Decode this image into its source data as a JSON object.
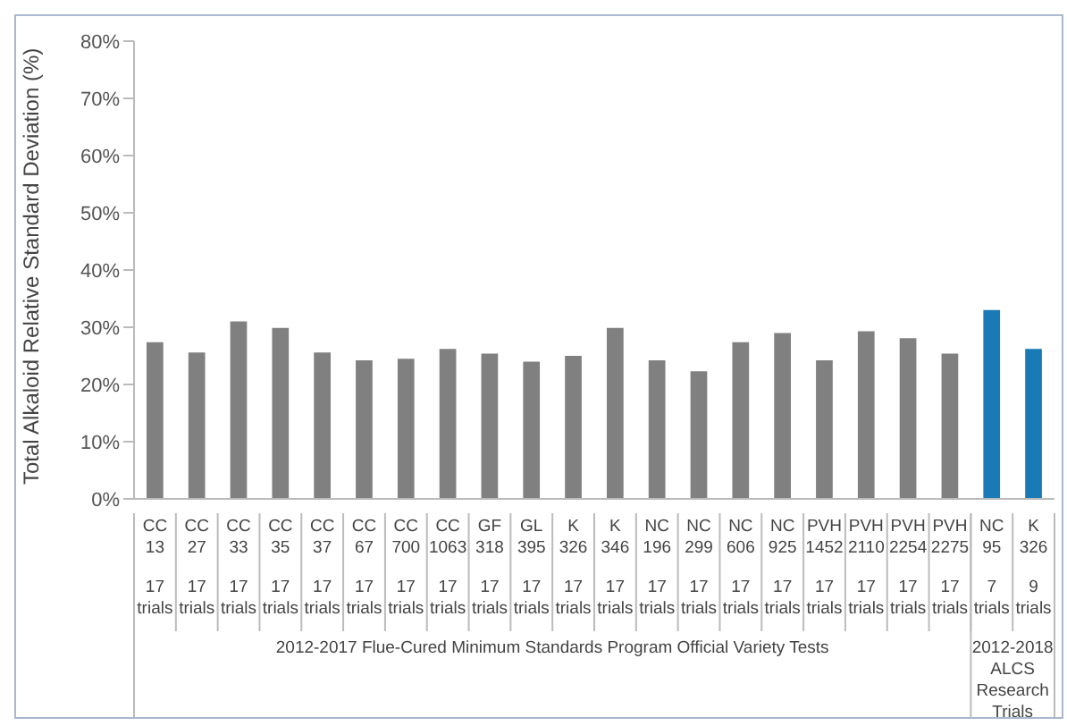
{
  "chart_data": {
    "type": "bar",
    "ylabel": "Total Alkaloid Relative Standard Deviation (%)",
    "categories": [
      "CC 13\n17 trials",
      "CC 27\n17 trials",
      "CC 33\n17 trials",
      "CC 35\n17 trials",
      "CC 37\n17 trials",
      "CC 67\n17 trials",
      "CC 700\n17 trials",
      "CC 1063\n17 trials",
      "GF 318\n17 trials",
      "GL 395\n17 trials",
      "K 326\n17 trials",
      "K 346\n17 trials",
      "NC 196\n17 trials",
      "NC 299\n17 trials",
      "NC 606\n17 trials",
      "NC 925\n17 trials",
      "PVH 1452\n17 trials",
      "PVH 2110\n17 trials",
      "PVH 2254\n17 trials",
      "PVH 2275\n17 trials",
      "NC 95\n7 trials",
      "K 326\n9 trials"
    ],
    "values": [
      27.4,
      25.6,
      31.0,
      29.9,
      25.6,
      24.2,
      24.5,
      26.2,
      25.4,
      24.0,
      25.0,
      29.9,
      24.2,
      22.3,
      27.4,
      29.0,
      24.2,
      29.3,
      28.1,
      25.4,
      33.0,
      26.2
    ],
    "colors": [
      "#808080",
      "#808080",
      "#808080",
      "#808080",
      "#808080",
      "#808080",
      "#808080",
      "#808080",
      "#808080",
      "#808080",
      "#808080",
      "#808080",
      "#808080",
      "#808080",
      "#808080",
      "#808080",
      "#808080",
      "#808080",
      "#808080",
      "#808080",
      "#1a7ab5",
      "#1a7ab5"
    ],
    "ylim": [
      0,
      80
    ],
    "yticks": [
      {
        "value": 0,
        "label": "0%"
      },
      {
        "value": 10,
        "label": "10%"
      },
      {
        "value": 20,
        "label": "20%"
      },
      {
        "value": 30,
        "label": "30%"
      },
      {
        "value": 40,
        "label": "40%"
      },
      {
        "value": 50,
        "label": "50%"
      },
      {
        "value": 60,
        "label": "60%"
      },
      {
        "value": 70,
        "label": "70%"
      },
      {
        "value": 80,
        "label": "80%"
      }
    ],
    "grid": false,
    "legend": false,
    "annotations": [
      "2012-2017 Flue-Cured Minimum Standards Program Official Variety Tests",
      "2012-2018 ALCS Research Trials"
    ]
  }
}
